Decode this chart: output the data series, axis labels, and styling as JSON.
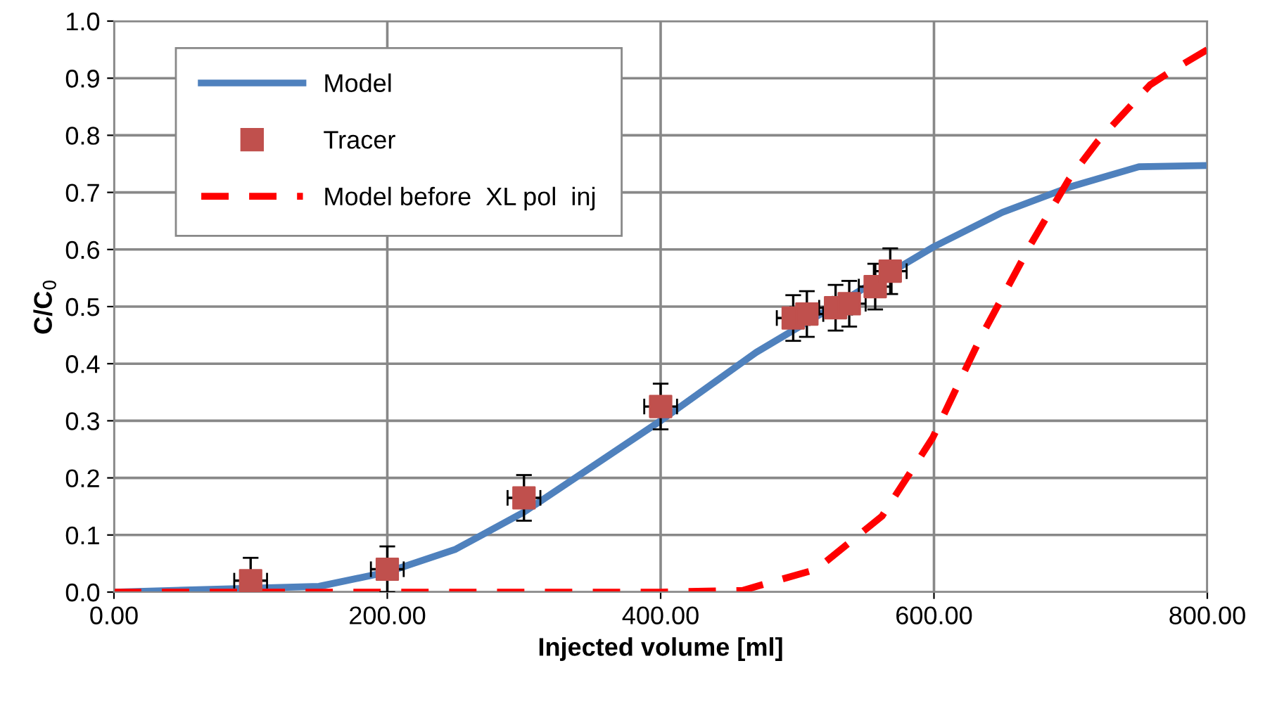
{
  "chart_data": {
    "type": "line",
    "xlabel": "Injected volume [ml]",
    "ylabel": "C/C$_{0}$",
    "xlim": [
      0,
      800
    ],
    "ylim": [
      0,
      1.0
    ],
    "xticks": [
      {
        "value": 0,
        "label": "0.00"
      },
      {
        "value": 200,
        "label": "200.00"
      },
      {
        "value": 400,
        "label": "400.00"
      },
      {
        "value": 600,
        "label": "600.00"
      },
      {
        "value": 800,
        "label": "800.00"
      }
    ],
    "yticks": [
      {
        "value": 0,
        "label": "0.0"
      },
      {
        "value": 0.1,
        "label": "0.1"
      },
      {
        "value": 0.2,
        "label": "0.2"
      },
      {
        "value": 0.3,
        "label": "0.3"
      },
      {
        "value": 0.4,
        "label": "0.4"
      },
      {
        "value": 0.5,
        "label": "0.5"
      },
      {
        "value": 0.6,
        "label": "0.6"
      },
      {
        "value": 0.7,
        "label": "0.7"
      },
      {
        "value": 0.8,
        "label": "0.8"
      },
      {
        "value": 0.9,
        "label": "0.9"
      },
      {
        "value": 1.0,
        "label": "1.0"
      }
    ],
    "grid": true,
    "legend": "top left",
    "series": [
      {
        "name": "Model",
        "color": "#4f81bd",
        "line_style": "solid",
        "x": [
          0,
          150,
          200,
          250,
          300,
          400,
          470,
          600,
          650,
          700,
          750,
          800
        ],
        "values": [
          0,
          0.01,
          0.035,
          0.075,
          0.14,
          0.3,
          0.42,
          0.605,
          0.665,
          0.71,
          0.745,
          0.747
        ]
      },
      {
        "name": "Tracer",
        "type": "scatter",
        "color": "#c0504d",
        "marker": "square",
        "x": [
          100,
          200,
          300,
          400,
          497,
          507,
          528,
          538,
          557,
          568
        ],
        "values": [
          0.02,
          0.04,
          0.165,
          0.325,
          0.48,
          0.487,
          0.498,
          0.505,
          0.535,
          0.562
        ],
        "errors": [
          0.04,
          0.04,
          0.04,
          0.04,
          0.04,
          0.04,
          0.04,
          0.04,
          0.04,
          0.04
        ],
        "xerrors": [
          12,
          12,
          12,
          12,
          12,
          12,
          12,
          12,
          12,
          12
        ]
      },
      {
        "name": "Model before  XL pol  inj",
        "color": "#ff0000",
        "line_style": "dashed",
        "x": [
          0,
          200,
          300,
          400,
          460,
          514,
          562,
          599,
          634,
          671,
          699,
          720,
          758,
          774,
          800
        ],
        "values": [
          0,
          0,
          0,
          0,
          0.003,
          0.04,
          0.133,
          0.27,
          0.445,
          0.61,
          0.724,
          0.79,
          0.888,
          0.913,
          0.95
        ]
      }
    ]
  }
}
